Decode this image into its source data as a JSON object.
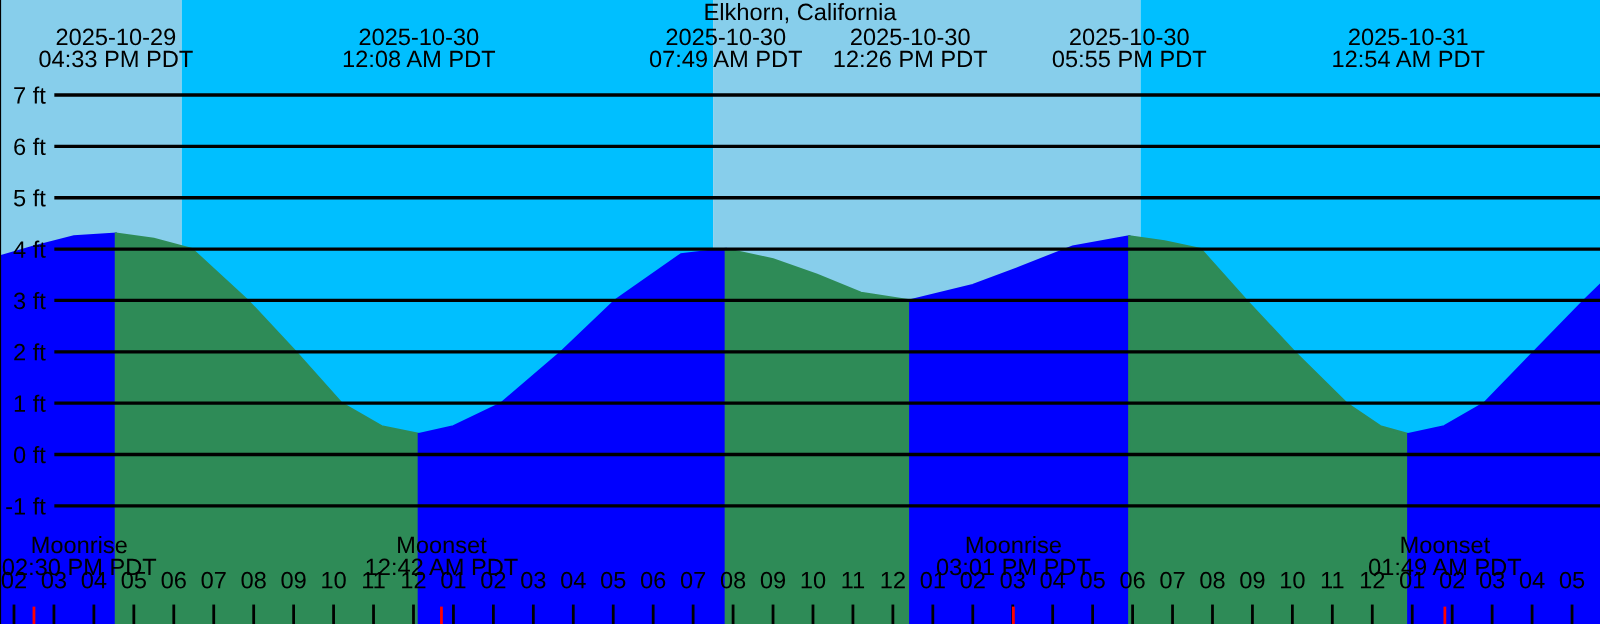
{
  "chart_data": {
    "type": "area",
    "title": "Elkhorn, California",
    "xlim": [
      "2025-10-29T13:39",
      "2025-10-31T05:42"
    ],
    "ylim": [
      -3.3,
      8.85
    ],
    "xticks": [
      {
        "value": "2025-10-29T14:00",
        "label": "02"
      },
      {
        "value": "2025-10-29T15:00",
        "label": "03"
      },
      {
        "value": "2025-10-29T16:00",
        "label": "04"
      },
      {
        "value": "2025-10-29T17:00",
        "label": "05"
      },
      {
        "value": "2025-10-29T18:00",
        "label": "06"
      },
      {
        "value": "2025-10-29T19:00",
        "label": "07"
      },
      {
        "value": "2025-10-29T20:00",
        "label": "08"
      },
      {
        "value": "2025-10-29T21:00",
        "label": "09"
      },
      {
        "value": "2025-10-29T22:00",
        "label": "10"
      },
      {
        "value": "2025-10-29T23:00",
        "label": "11"
      },
      {
        "value": "2025-10-30T00:00",
        "label": "12"
      },
      {
        "value": "2025-10-30T01:00",
        "label": "01"
      },
      {
        "value": "2025-10-30T02:00",
        "label": "02"
      },
      {
        "value": "2025-10-30T03:00",
        "label": "03"
      },
      {
        "value": "2025-10-30T04:00",
        "label": "04"
      },
      {
        "value": "2025-10-30T05:00",
        "label": "05"
      },
      {
        "value": "2025-10-30T06:00",
        "label": "06"
      },
      {
        "value": "2025-10-30T07:00",
        "label": "07"
      },
      {
        "value": "2025-10-30T08:00",
        "label": "08"
      },
      {
        "value": "2025-10-30T09:00",
        "label": "09"
      },
      {
        "value": "2025-10-30T10:00",
        "label": "10"
      },
      {
        "value": "2025-10-30T11:00",
        "label": "11"
      },
      {
        "value": "2025-10-30T12:00",
        "label": "12"
      },
      {
        "value": "2025-10-30T13:00",
        "label": "01"
      },
      {
        "value": "2025-10-30T14:00",
        "label": "02"
      },
      {
        "value": "2025-10-30T15:00",
        "label": "03"
      },
      {
        "value": "2025-10-30T16:00",
        "label": "04"
      },
      {
        "value": "2025-10-30T17:00",
        "label": "05"
      },
      {
        "value": "2025-10-30T18:00",
        "label": "06"
      },
      {
        "value": "2025-10-30T19:00",
        "label": "07"
      },
      {
        "value": "2025-10-30T20:00",
        "label": "08"
      },
      {
        "value": "2025-10-30T21:00",
        "label": "09"
      },
      {
        "value": "2025-10-30T22:00",
        "label": "10"
      },
      {
        "value": "2025-10-30T23:00",
        "label": "11"
      },
      {
        "value": "2025-10-31T00:00",
        "label": "12"
      },
      {
        "value": "2025-10-31T01:00",
        "label": "01"
      },
      {
        "value": "2025-10-31T02:00",
        "label": "02"
      },
      {
        "value": "2025-10-31T03:00",
        "label": "03"
      },
      {
        "value": "2025-10-31T04:00",
        "label": "04"
      },
      {
        "value": "2025-10-31T05:00",
        "label": "05"
      }
    ],
    "yticks": [
      {
        "value": -1,
        "label": "-1 ft"
      },
      {
        "value": 0,
        "label": "0 ft"
      },
      {
        "value": 1,
        "label": "1 ft"
      },
      {
        "value": 2,
        "label": "2 ft"
      },
      {
        "value": 3,
        "label": "3 ft"
      },
      {
        "value": 4,
        "label": "4 ft"
      },
      {
        "value": 5,
        "label": "5 ft"
      },
      {
        "value": 6,
        "label": "6 ft"
      },
      {
        "value": 7,
        "label": "7 ft"
      }
    ],
    "grid": "y",
    "legend": false,
    "bands": [
      {
        "axis": "x",
        "from": "2025-10-29T13:39",
        "to": "2025-10-29T18:12",
        "color": "#87ceeb"
      },
      {
        "axis": "x",
        "from": "2025-10-29T18:12",
        "to": "2025-10-30T07:30",
        "color": "#00bfff"
      },
      {
        "axis": "x",
        "from": "2025-10-30T07:30",
        "to": "2025-10-30T18:12",
        "color": "#87ceeb"
      },
      {
        "axis": "x",
        "from": "2025-10-30T18:12",
        "to": "2025-10-31T05:42",
        "color": "#00bfff"
      }
    ],
    "ref_lines": [
      {
        "axis": "x",
        "value": "2025-10-29T14:30",
        "label": "Moonrise\n02:30 PM PDT",
        "color": "#ff0000"
      },
      {
        "axis": "x",
        "value": "2025-10-30T00:42",
        "label": "Moonset\n12:42 AM PDT",
        "color": "#ff0000"
      },
      {
        "axis": "x",
        "value": "2025-10-30T15:01",
        "label": "Moonrise\n03:01 PM PDT",
        "color": "#ff0000"
      },
      {
        "axis": "x",
        "value": "2025-10-31T01:49",
        "label": "Moonset\n01:49 AM PDT",
        "color": "#ff0000"
      }
    ],
    "series": [
      {
        "color": "#0000ff",
        "x": [
          "2025-10-29T13:42",
          "2025-10-29T14:30",
          "2025-10-29T15:30",
          "2025-10-29T16:33"
        ],
        "values": [
          3.87,
          4.05,
          4.25,
          4.3
        ]
      },
      {
        "color": "#2e8b57",
        "x": [
          "2025-10-29T16:33",
          "2025-10-29T17:30",
          "2025-10-29T18:27",
          "2025-10-29T19:51",
          "2025-10-29T21:03",
          "2025-10-29T22:12",
          "2025-10-29T23:12",
          "2025-10-30T00:08"
        ],
        "values": [
          4.3,
          4.2,
          4.0,
          3.0,
          2.0,
          1.0,
          0.55,
          0.4
        ]
      },
      {
        "color": "#0000ff",
        "x": [
          "2025-10-30T00:08",
          "2025-10-30T01:00",
          "2025-10-30T02:12",
          "2025-10-30T03:42",
          "2025-10-30T05:03",
          "2025-10-30T06:42",
          "2025-10-30T07:49"
        ],
        "values": [
          0.4,
          0.55,
          1.0,
          2.0,
          3.0,
          3.9,
          4.0
        ]
      },
      {
        "color": "#2e8b57",
        "x": [
          "2025-10-30T07:49",
          "2025-10-30T09:00",
          "2025-10-30T10:06",
          "2025-10-30T11:12",
          "2025-10-30T12:26"
        ],
        "values": [
          4.0,
          3.8,
          3.5,
          3.15,
          3.0
        ]
      },
      {
        "color": "#0000ff",
        "x": [
          "2025-10-30T12:26",
          "2025-10-30T14:00",
          "2025-10-30T15:12",
          "2025-10-30T16:30",
          "2025-10-30T17:55"
        ],
        "values": [
          3.0,
          3.3,
          3.65,
          4.05,
          4.25
        ]
      },
      {
        "color": "#2e8b57",
        "x": [
          "2025-10-30T17:55",
          "2025-10-30T18:48",
          "2025-10-30T19:42",
          "2025-10-30T20:51",
          "2025-10-30T22:03",
          "2025-10-30T23:21",
          "2025-10-31T00:12",
          "2025-10-31T00:54"
        ],
        "values": [
          4.25,
          4.15,
          4.0,
          3.0,
          2.0,
          1.0,
          0.55,
          0.4
        ]
      },
      {
        "color": "#0000ff",
        "x": [
          "2025-10-31T00:54",
          "2025-10-31T01:48",
          "2025-10-31T02:48",
          "2025-10-31T04:03",
          "2025-10-31T05:18",
          "2025-10-31T05:42"
        ],
        "values": [
          0.4,
          0.55,
          1.0,
          2.0,
          3.0,
          3.3
        ]
      }
    ],
    "annotations": [
      "2025-10-29\n04:33 PM PDT",
      "2025-10-30\n12:08 AM PDT",
      "2025-10-30\n07:49 AM PDT",
      "2025-10-30\n12:26 PM PDT",
      "2025-10-30\n05:55 PM PDT",
      "2025-10-31\n12:54 AM PDT"
    ]
  }
}
